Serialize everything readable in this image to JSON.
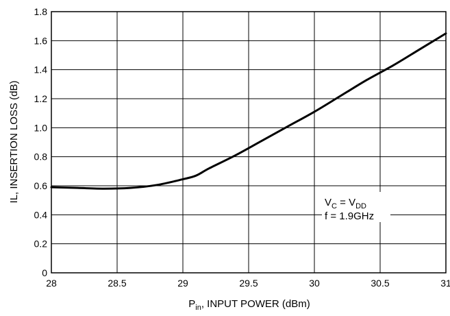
{
  "chart_data": {
    "type": "line",
    "title": "",
    "xlabel": {
      "main": "P",
      "sub": "in",
      "rest": ", INPUT POWER (dBm)"
    },
    "ylabel": "IL, INSERTION LOSS (dB)",
    "xlim": [
      28,
      31
    ],
    "ylim": [
      0,
      1.8
    ],
    "x_ticks": [
      28,
      28.5,
      29,
      29.5,
      30,
      30.5,
      31
    ],
    "x_tick_labels": [
      "28",
      "28.5",
      "29",
      "29.5",
      "30",
      "30.5",
      "31"
    ],
    "y_ticks": [
      0,
      0.2,
      0.4,
      0.6,
      0.8,
      1.0,
      1.2,
      1.4,
      1.6,
      1.8
    ],
    "y_tick_labels": [
      "0",
      "0.2",
      "0.4",
      "0.6",
      "0.8",
      "1.0",
      "1.2",
      "1.4",
      "1.6",
      "1.8"
    ],
    "grid": true,
    "series": [
      {
        "x": [
          28.0,
          28.2,
          28.4,
          28.6,
          28.8,
          29.0,
          29.1,
          29.2,
          29.4,
          29.6,
          29.8,
          30.0,
          30.2,
          30.4,
          30.6,
          30.8,
          31.0
        ],
        "y": [
          0.59,
          0.585,
          0.58,
          0.585,
          0.605,
          0.645,
          0.67,
          0.72,
          0.81,
          0.91,
          1.01,
          1.11,
          1.22,
          1.33,
          1.43,
          1.54,
          1.65
        ]
      }
    ],
    "annotations": {
      "line1": {
        "a": "V",
        "a_sub": "C",
        "mid": " = V",
        "b_sub": "DD"
      },
      "line2": "f = 1.9GHz"
    }
  }
}
